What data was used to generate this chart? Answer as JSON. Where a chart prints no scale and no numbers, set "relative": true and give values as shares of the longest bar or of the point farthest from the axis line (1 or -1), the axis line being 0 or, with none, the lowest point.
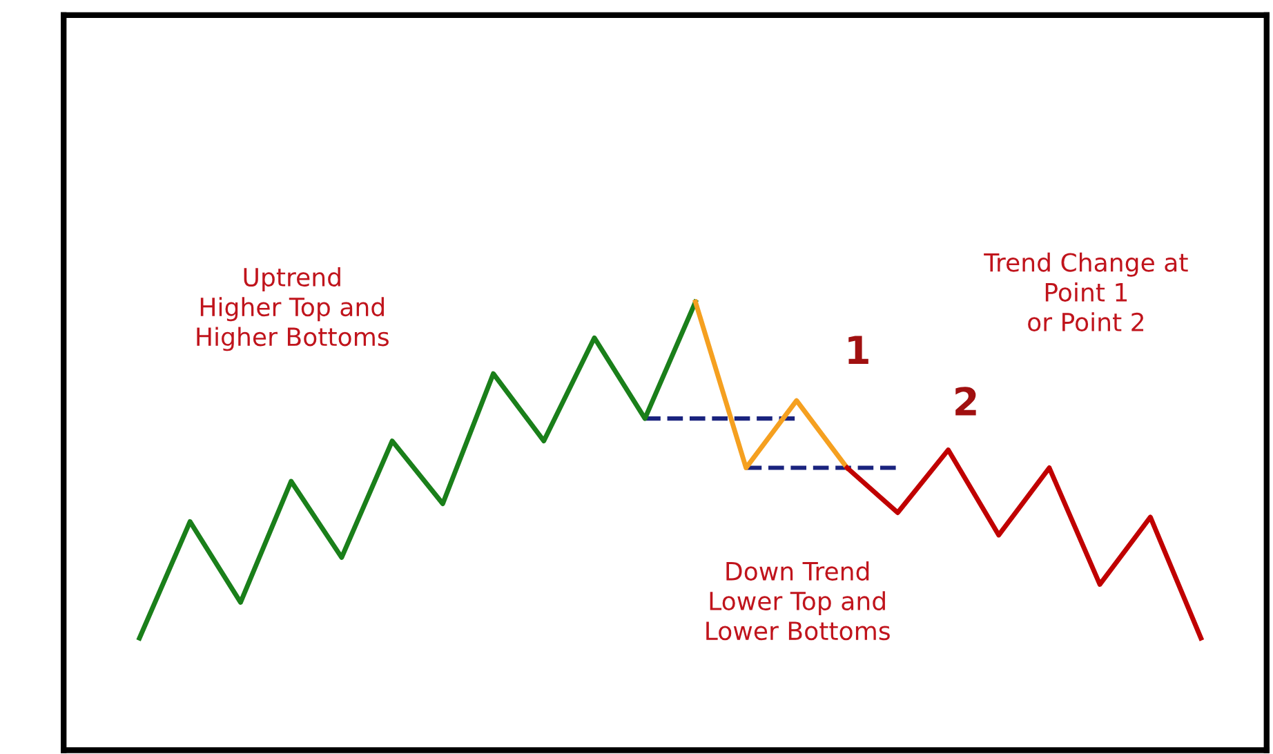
{
  "chart_data": {
    "type": "line",
    "relative": true,
    "grid": false,
    "legend": false,
    "marker": "none",
    "categories": [
      null,
      null,
      null,
      null,
      null,
      null,
      null,
      null,
      null,
      null,
      null,
      null,
      null,
      null,
      null,
      null,
      null,
      null,
      null,
      null,
      null,
      null
    ],
    "series": [
      {
        "color": "#1a7f1a",
        "values": [
          0.25,
          0.51,
          0.33,
          0.6,
          0.43,
          0.69,
          0.55,
          0.84,
          0.69,
          0.92,
          0.74,
          1,
          null,
          null,
          null,
          null,
          null,
          null,
          null,
          null,
          null,
          null
        ]
      },
      {
        "color": "#f5a020",
        "values": [
          null,
          null,
          null,
          null,
          null,
          null,
          null,
          null,
          null,
          null,
          null,
          1,
          0.63,
          0.78,
          0.63,
          null,
          null,
          null,
          null,
          null,
          null,
          null
        ]
      },
      {
        "color": "#c00000",
        "values": [
          null,
          null,
          null,
          null,
          null,
          null,
          null,
          null,
          null,
          null,
          null,
          null,
          null,
          null,
          0.63,
          0.53,
          0.67,
          0.48,
          0.63,
          0.37,
          0.52,
          0.25
        ]
      },
      {
        "color": "#1a237e",
        "line_style": "dashed",
        "values": [
          null,
          null,
          null,
          null,
          null,
          null,
          null,
          null,
          null,
          null,
          0.74,
          0.74,
          0.74,
          0.74,
          null,
          null,
          null,
          null,
          null,
          null,
          null,
          null
        ]
      },
      {
        "color": "#1a237e",
        "line_style": "dashed",
        "values": [
          null,
          null,
          null,
          null,
          null,
          null,
          null,
          null,
          null,
          null,
          null,
          null,
          0.63,
          0.63,
          0.63,
          0.63,
          null,
          null,
          null,
          null,
          null,
          null
        ]
      }
    ],
    "annotations": [
      "Uptrend\nHigher Top and\nHigher Bottoms",
      "Trend Change at\nPoint 1\nor Point 2",
      "Down Trend\nLower Top and\nLower Bottoms",
      "1",
      "2"
    ]
  }
}
